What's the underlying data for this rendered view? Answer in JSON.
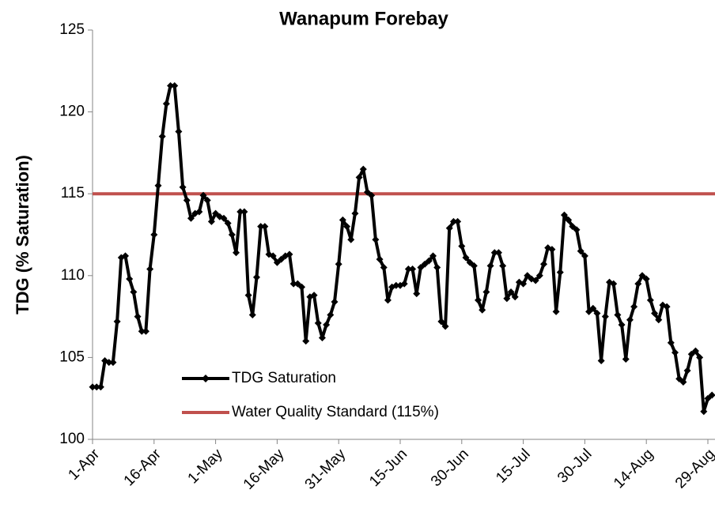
{
  "chart_data": {
    "type": "line",
    "title": "Wanapum Forebay",
    "y_label": "TDG (% Saturation)",
    "categories": [
      "1-Apr",
      null,
      null,
      null,
      null,
      null,
      null,
      null,
      null,
      null,
      null,
      null,
      null,
      null,
      null,
      "16-Apr",
      null,
      null,
      null,
      null,
      null,
      null,
      null,
      null,
      null,
      null,
      null,
      null,
      null,
      null,
      "1-May",
      null,
      null,
      null,
      null,
      null,
      null,
      null,
      null,
      null,
      null,
      null,
      null,
      null,
      null,
      "16-May",
      null,
      null,
      null,
      null,
      null,
      null,
      null,
      null,
      null,
      null,
      null,
      null,
      null,
      null,
      "31-May",
      null,
      null,
      null,
      null,
      null,
      null,
      null,
      null,
      null,
      null,
      null,
      null,
      null,
      null,
      "15-Jun",
      null,
      null,
      null,
      null,
      null,
      null,
      null,
      null,
      null,
      null,
      null,
      null,
      null,
      null,
      "30-Jun",
      null,
      null,
      null,
      null,
      null,
      null,
      null,
      null,
      null,
      null,
      null,
      null,
      null,
      null,
      "15-Jul",
      null,
      null,
      null,
      null,
      null,
      null,
      null,
      null,
      null,
      null,
      null,
      null,
      null,
      null,
      "30-Jul",
      null,
      null,
      null,
      null,
      null,
      null,
      null,
      null,
      null,
      null,
      null,
      null,
      null,
      null,
      "14-Aug",
      null,
      null,
      null,
      null,
      null,
      null,
      null,
      null,
      null,
      null,
      null,
      null,
      null,
      null,
      "29-Aug",
      null
    ],
    "series": [
      {
        "name": "TDG Saturation",
        "color": "#000000",
        "values": [
          103.2,
          103.2,
          103.2,
          104.8,
          104.7,
          104.7,
          107.2,
          111.1,
          111.2,
          109.8,
          109.0,
          107.5,
          106.6,
          106.6,
          110.4,
          112.5,
          115.5,
          118.5,
          120.5,
          121.6,
          121.6,
          118.8,
          115.4,
          114.6,
          113.5,
          113.8,
          113.9,
          114.9,
          114.6,
          113.3,
          113.8,
          113.6,
          113.5,
          113.2,
          112.5,
          111.4,
          113.9,
          113.9,
          108.8,
          107.6,
          109.9,
          113.0,
          113.0,
          111.3,
          111.2,
          110.8,
          111.0,
          111.2,
          111.3,
          109.5,
          109.5,
          109.3,
          106.0,
          108.7,
          108.8,
          107.1,
          106.2,
          107.0,
          107.6,
          108.4,
          110.7,
          113.4,
          113.0,
          112.2,
          113.8,
          116.0,
          116.5,
          115.1,
          114.9,
          112.2,
          111.0,
          110.5,
          108.5,
          109.3,
          109.4,
          109.4,
          109.5,
          110.4,
          110.4,
          108.9,
          110.5,
          110.7,
          110.9,
          111.2,
          110.5,
          107.2,
          106.9,
          112.9,
          113.3,
          113.3,
          111.8,
          111.1,
          110.8,
          110.6,
          108.5,
          107.9,
          109.0,
          110.6,
          111.4,
          111.4,
          110.6,
          108.6,
          109.0,
          108.7,
          109.6,
          109.5,
          110.0,
          109.8,
          109.7,
          110.0,
          110.7,
          111.7,
          111.6,
          107.8,
          110.2,
          113.7,
          113.4,
          113.0,
          112.8,
          111.5,
          111.2,
          107.8,
          108.0,
          107.7,
          104.8,
          107.5,
          109.6,
          109.5,
          107.6,
          107.0,
          104.9,
          107.3,
          108.1,
          109.5,
          110.0,
          109.8,
          108.5,
          107.7,
          107.3,
          108.2,
          108.1,
          105.9,
          105.3,
          103.7,
          103.5,
          104.2,
          105.2,
          105.4,
          105.0,
          101.7,
          102.5,
          102.7
        ]
      }
    ],
    "reference_lines": [
      {
        "name": "Water Quality Standard (115%)",
        "value": 115,
        "color": "#c0504d"
      }
    ],
    "ylim": [
      100,
      125
    ],
    "yticks": [
      100,
      105,
      110,
      115,
      120,
      125
    ]
  }
}
